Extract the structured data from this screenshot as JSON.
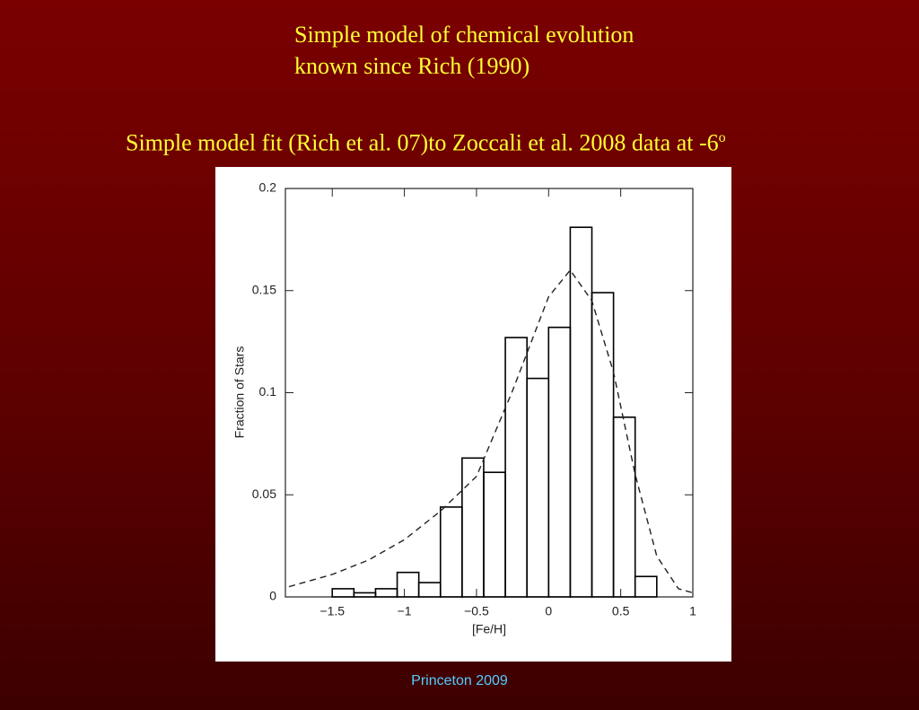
{
  "slide": {
    "title_lines": [
      "Simple model of chemical evolution",
      "known since Rich (1990)"
    ],
    "subtitle": "Simple model fit (Rich et al. 07)to Zoccali et al. 2008 data at -6",
    "subtitle_sup": "o",
    "footer": "Princeton 2009"
  },
  "chart_data": {
    "type": "histogram",
    "x_label": "[Fe/H]",
    "y_label": "Fraction of Stars",
    "bins": [
      -1.5,
      -1.35,
      -1.2,
      -1.05,
      -0.9,
      -0.75,
      -0.6,
      -0.45,
      -0.3,
      -0.15,
      0,
      0.15,
      0.3,
      0.45,
      0.6,
      0.75
    ],
    "counts": [
      0.004,
      0.002,
      0.004,
      0.012,
      0.007,
      0.044,
      0.068,
      0.061,
      0.127,
      0.107,
      0.132,
      0.181,
      0.149,
      0.088,
      0.01
    ],
    "color": "#000000",
    "curve": {
      "x": [
        -1.8,
        -1.5,
        -1.25,
        -1.0,
        -0.75,
        -0.5,
        -0.25,
        0.0,
        0.15,
        0.3,
        0.45,
        0.6,
        0.75,
        0.9,
        1.0
      ],
      "values": [
        0.005,
        0.011,
        0.018,
        0.028,
        0.042,
        0.059,
        0.101,
        0.147,
        0.16,
        0.145,
        0.11,
        0.06,
        0.02,
        0.004,
        0.002
      ],
      "dashed": true
    },
    "xlim": [
      -1.825,
      1
    ],
    "ylim": [
      0,
      0.2
    ],
    "xticks": [
      {
        "value": -1.5,
        "label": "−1.5"
      },
      {
        "value": -1,
        "label": "−1"
      },
      {
        "value": -0.5,
        "label": "−0.5"
      },
      0,
      0.5,
      1
    ],
    "yticks": [
      0,
      0.05,
      0.1,
      0.15,
      0.2
    ]
  }
}
